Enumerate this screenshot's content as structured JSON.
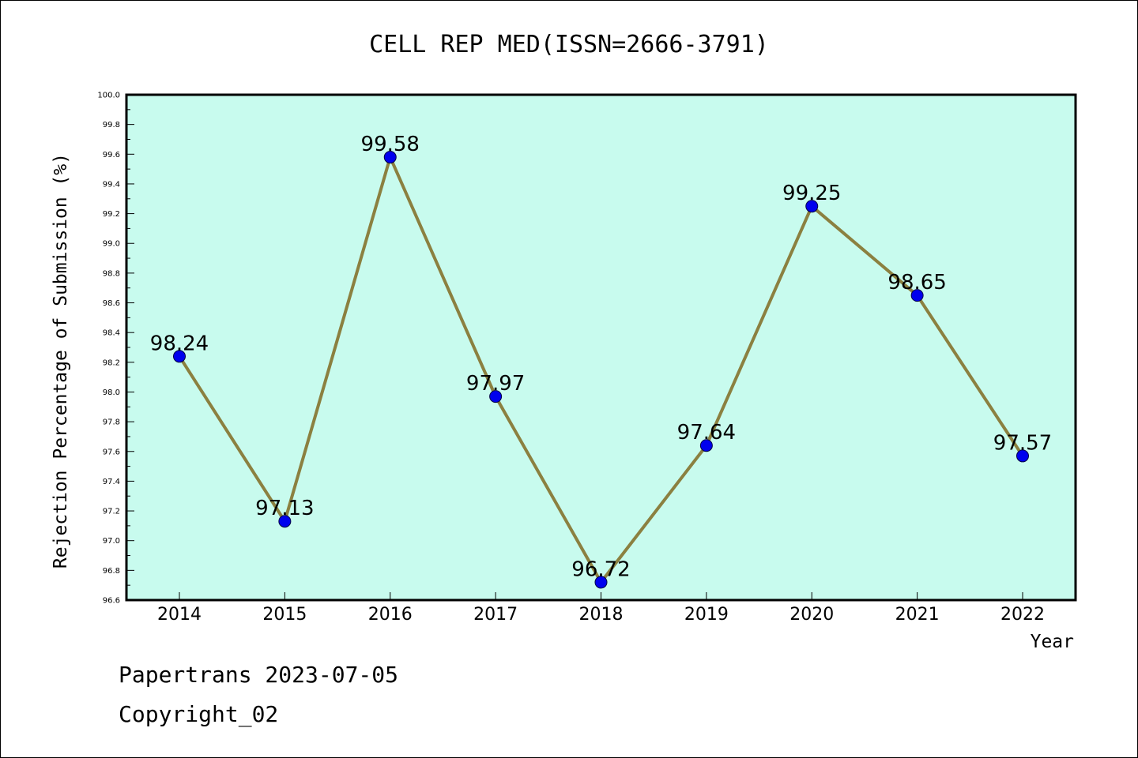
{
  "footer": {
    "line1": "Papertrans 2023-07-05",
    "line2": "Copyright_02"
  },
  "colors": {
    "plot_background": "#c8fbee",
    "line": "#8b8040",
    "marker": "#0000ee"
  },
  "chart_data": {
    "type": "line",
    "title": "CELL REP MED(ISSN=2666-3791)",
    "xlabel": "Year",
    "ylabel": "Rejection Percentage of Submission (%)",
    "categories": [
      "2014",
      "2015",
      "2016",
      "2017",
      "2018",
      "2019",
      "2020",
      "2021",
      "2022"
    ],
    "values": [
      98.24,
      97.13,
      99.58,
      97.97,
      96.72,
      97.64,
      99.25,
      98.65,
      97.57
    ],
    "data_labels": [
      "98.24",
      "97.13",
      "99.58",
      "97.97",
      "96.72",
      "97.64",
      "99.25",
      "98.65",
      "97.57"
    ],
    "ylim": [
      96.6,
      100.0
    ],
    "yticks": [
      "96.6",
      "96.8",
      "97.0",
      "97.2",
      "97.4",
      "97.6",
      "97.8",
      "98.0",
      "98.2",
      "98.4",
      "98.6",
      "98.8",
      "99.0",
      "99.2",
      "99.4",
      "99.6",
      "99.8",
      "100.0"
    ],
    "grid": false,
    "legend": "none"
  }
}
